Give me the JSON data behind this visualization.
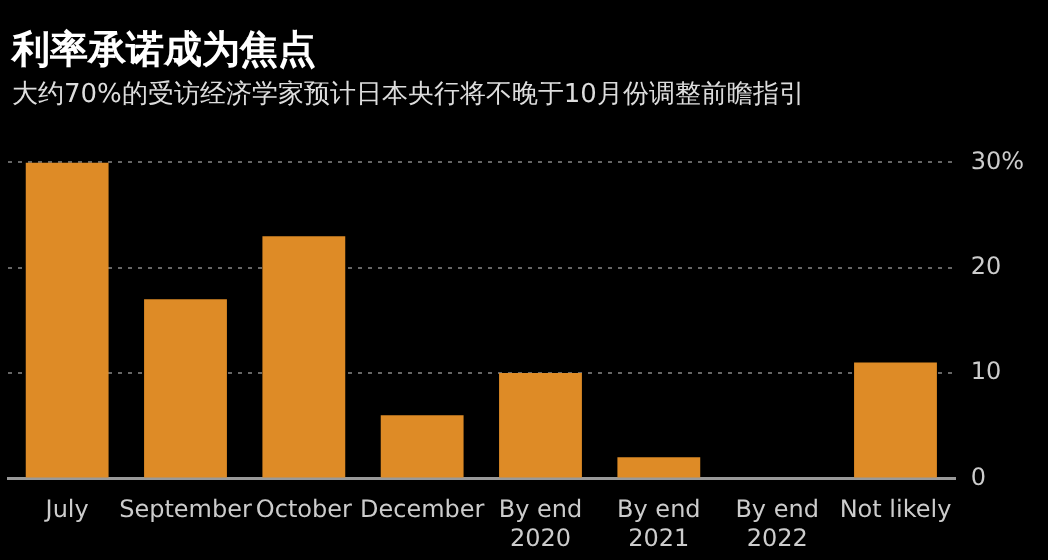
{
  "chart_data": {
    "type": "bar",
    "title": "利率承诺成为焦点",
    "subtitle": "大约70%的受访经济学家预计日本央行将不晚于10月份调整前瞻指引",
    "categories": [
      "July",
      "September",
      "October",
      "December",
      "By end\n2020",
      "By end\n2021",
      "By end\n2022",
      "Not likely"
    ],
    "values": [
      30,
      17,
      23,
      6,
      10,
      2,
      0,
      11
    ],
    "color": "#de8b26",
    "ylim": [
      0,
      30
    ],
    "yticks": [
      0,
      10,
      20,
      {
        "value": 30,
        "label": "30%"
      }
    ],
    "grid": "y"
  }
}
